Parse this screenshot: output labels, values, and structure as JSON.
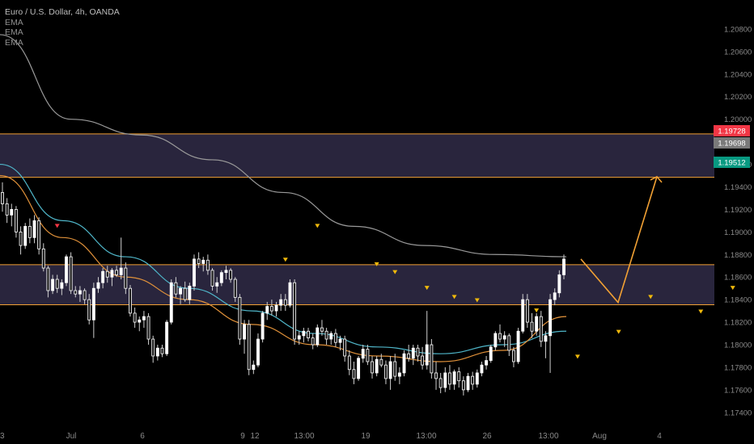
{
  "chart_data": {
    "type": "candlestick",
    "symbol_title": "Euro / U.S. Dollar, 4h, OANDA",
    "indicators": [
      "EMA",
      "EMA",
      "EMA"
    ],
    "ylim": [
      1.1732,
      1.21
    ],
    "y_ticks": [
      "1.20800",
      "1.20600",
      "1.20400",
      "1.20200",
      "1.20000",
      "1.19600",
      "1.19400",
      "1.19200",
      "1.19000",
      "1.18800",
      "1.18600",
      "1.18400",
      "1.18200",
      "1.18000",
      "1.17800",
      "1.17600",
      "1.17400"
    ],
    "x_ticks": [
      "3",
      "Jul",
      "6",
      "9",
      "12",
      "13:00",
      "19",
      "13:00",
      "26",
      "13:00",
      "Aug",
      "4"
    ],
    "price_badges": [
      {
        "label": "1.19728",
        "value": 1.19728,
        "color": "#f23645"
      },
      {
        "label": "1.19698",
        "value": 1.19698,
        "color": "#7a7a7a"
      },
      {
        "label": "1.19512",
        "value": 1.19512,
        "color": "#089981"
      }
    ],
    "zones": [
      {
        "top": 1.1987,
        "bottom": 1.19485
      },
      {
        "top": 1.1871,
        "bottom": 1.18355
      }
    ],
    "projection": [
      [
        0,
        1.1876
      ],
      [
        1,
        1.18375
      ],
      [
        2,
        1.1949
      ]
    ],
    "candles": [
      [
        1.1935,
        1.1944,
        1.1918,
        1.1925
      ],
      [
        1.1925,
        1.193,
        1.1908,
        1.1915
      ],
      [
        1.1915,
        1.1925,
        1.1905,
        1.192
      ],
      [
        1.192,
        1.1923,
        1.1895,
        1.19
      ],
      [
        1.19,
        1.1905,
        1.188,
        1.1888
      ],
      [
        1.1888,
        1.1908,
        1.1885,
        1.1905
      ],
      [
        1.1905,
        1.1912,
        1.189,
        1.1895
      ],
      [
        1.1895,
        1.1915,
        1.189,
        1.191
      ],
      [
        1.191,
        1.1913,
        1.188,
        1.1885
      ],
      [
        1.1885,
        1.189,
        1.1865,
        1.1868
      ],
      [
        1.1868,
        1.187,
        1.1842,
        1.1848
      ],
      [
        1.1848,
        1.1862,
        1.1845,
        1.1858
      ],
      [
        1.1858,
        1.1862,
        1.1846,
        1.185
      ],
      [
        1.185,
        1.1858,
        1.1844,
        1.1855
      ],
      [
        1.1855,
        1.188,
        1.1852,
        1.1878
      ],
      [
        1.1878,
        1.1882,
        1.1845,
        1.1848
      ],
      [
        1.1848,
        1.1852,
        1.1842,
        1.1845
      ],
      [
        1.1845,
        1.1852,
        1.1838,
        1.1848
      ],
      [
        1.1848,
        1.185,
        1.1836,
        1.184
      ],
      [
        1.184,
        1.1845,
        1.1818,
        1.1822
      ],
      [
        1.1822,
        1.1855,
        1.1806,
        1.185
      ],
      [
        1.185,
        1.186,
        1.1846,
        1.1855
      ],
      [
        1.1855,
        1.1868,
        1.185,
        1.1865
      ],
      [
        1.1865,
        1.187,
        1.1855,
        1.186
      ],
      [
        1.186,
        1.1868,
        1.1852,
        1.1866
      ],
      [
        1.1866,
        1.187,
        1.186,
        1.1862
      ],
      [
        1.1862,
        1.1895,
        1.1858,
        1.1868
      ],
      [
        1.1868,
        1.1873,
        1.1845,
        1.185
      ],
      [
        1.185,
        1.1853,
        1.1825,
        1.1828
      ],
      [
        1.1828,
        1.1833,
        1.1815,
        1.182
      ],
      [
        1.182,
        1.1825,
        1.1812,
        1.1822
      ],
      [
        1.1822,
        1.183,
        1.1815,
        1.1825
      ],
      [
        1.1825,
        1.1828,
        1.18,
        1.1805
      ],
      [
        1.1805,
        1.1808,
        1.1784,
        1.179
      ],
      [
        1.179,
        1.18,
        1.1786,
        1.1797
      ],
      [
        1.1797,
        1.18,
        1.1789,
        1.1792
      ],
      [
        1.1792,
        1.1822,
        1.179,
        1.182
      ],
      [
        1.182,
        1.1858,
        1.1818,
        1.1855
      ],
      [
        1.1855,
        1.186,
        1.1842,
        1.1845
      ],
      [
        1.1845,
        1.1852,
        1.1836,
        1.185
      ],
      [
        1.185,
        1.1856,
        1.1838,
        1.184
      ],
      [
        1.184,
        1.1855,
        1.1836,
        1.1852
      ],
      [
        1.1852,
        1.188,
        1.1848,
        1.1876
      ],
      [
        1.1876,
        1.1882,
        1.1868,
        1.1872
      ],
      [
        1.1872,
        1.1878,
        1.1865,
        1.1875
      ],
      [
        1.1875,
        1.188,
        1.1862,
        1.1866
      ],
      [
        1.1866,
        1.1868,
        1.1848,
        1.1852
      ],
      [
        1.1852,
        1.186,
        1.1846,
        1.1855
      ],
      [
        1.1855,
        1.1866,
        1.1852,
        1.1864
      ],
      [
        1.1864,
        1.187,
        1.1858,
        1.1866
      ],
      [
        1.1866,
        1.1868,
        1.1855,
        1.1858
      ],
      [
        1.1858,
        1.186,
        1.1838,
        1.1842
      ],
      [
        1.1842,
        1.1845,
        1.18,
        1.1805
      ],
      [
        1.1805,
        1.1822,
        1.1792,
        1.1818
      ],
      [
        1.1818,
        1.1822,
        1.1773,
        1.1778
      ],
      [
        1.1778,
        1.1786,
        1.1774,
        1.1782
      ],
      [
        1.1782,
        1.181,
        1.178,
        1.1805
      ],
      [
        1.1805,
        1.183,
        1.1802,
        1.1828
      ],
      [
        1.1828,
        1.1838,
        1.1822,
        1.1834
      ],
      [
        1.1834,
        1.184,
        1.1826,
        1.183
      ],
      [
        1.183,
        1.1838,
        1.1825,
        1.1835
      ],
      [
        1.1835,
        1.1845,
        1.183,
        1.184
      ],
      [
        1.184,
        1.1845,
        1.183,
        1.1835
      ],
      [
        1.1835,
        1.1858,
        1.1833,
        1.1855
      ],
      [
        1.1855,
        1.1858,
        1.18,
        1.1805
      ],
      [
        1.1805,
        1.1812,
        1.18,
        1.1808
      ],
      [
        1.1808,
        1.1815,
        1.1802,
        1.1812
      ],
      [
        1.1812,
        1.1815,
        1.1803,
        1.1806
      ],
      [
        1.1806,
        1.181,
        1.1796,
        1.18
      ],
      [
        1.18,
        1.1818,
        1.1798,
        1.1815
      ],
      [
        1.1815,
        1.1822,
        1.1808,
        1.1812
      ],
      [
        1.1812,
        1.1815,
        1.18,
        1.1805
      ],
      [
        1.1805,
        1.1812,
        1.18,
        1.181
      ],
      [
        1.181,
        1.1814,
        1.1798,
        1.1802
      ],
      [
        1.1802,
        1.1808,
        1.1795,
        1.1805
      ],
      [
        1.1805,
        1.1808,
        1.1785,
        1.179
      ],
      [
        1.179,
        1.1795,
        1.1773,
        1.1778
      ],
      [
        1.1778,
        1.1785,
        1.1765,
        1.177
      ],
      [
        1.177,
        1.179,
        1.1768,
        1.1788
      ],
      [
        1.1788,
        1.18,
        1.1784,
        1.1796
      ],
      [
        1.1796,
        1.18,
        1.1782,
        1.1785
      ],
      [
        1.1785,
        1.179,
        1.177,
        1.1775
      ],
      [
        1.1775,
        1.179,
        1.1772,
        1.1787
      ],
      [
        1.1787,
        1.1792,
        1.178,
        1.1782
      ],
      [
        1.1782,
        1.1786,
        1.1765,
        1.177
      ],
      [
        1.177,
        1.179,
        1.176,
        1.1785
      ],
      [
        1.1785,
        1.1792,
        1.1768,
        1.1772
      ],
      [
        1.1772,
        1.178,
        1.1765,
        1.1775
      ],
      [
        1.1775,
        1.1795,
        1.1772,
        1.1792
      ],
      [
        1.1792,
        1.18,
        1.1785,
        1.1788
      ],
      [
        1.1788,
        1.18,
        1.1782,
        1.1797
      ],
      [
        1.1797,
        1.18,
        1.1785,
        1.179
      ],
      [
        1.179,
        1.1798,
        1.1778,
        1.1782
      ],
      [
        1.1782,
        1.183,
        1.1778,
        1.18
      ],
      [
        1.18,
        1.1805,
        1.177,
        1.1775
      ],
      [
        1.1775,
        1.1785,
        1.176,
        1.177
      ],
      [
        1.177,
        1.1775,
        1.1757,
        1.1762
      ],
      [
        1.1762,
        1.178,
        1.1758,
        1.1775
      ],
      [
        1.1775,
        1.1782,
        1.176,
        1.1765
      ],
      [
        1.1765,
        1.1778,
        1.176,
        1.1776
      ],
      [
        1.1776,
        1.178,
        1.1762,
        1.1768
      ],
      [
        1.1768,
        1.1772,
        1.1755,
        1.176
      ],
      [
        1.176,
        1.1775,
        1.1758,
        1.1772
      ],
      [
        1.1772,
        1.1776,
        1.176,
        1.1765
      ],
      [
        1.1765,
        1.1778,
        1.1762,
        1.1775
      ],
      [
        1.1775,
        1.1785,
        1.1772,
        1.1782
      ],
      [
        1.1782,
        1.179,
        1.1778,
        1.1786
      ],
      [
        1.1786,
        1.18,
        1.1784,
        1.1798
      ],
      [
        1.1798,
        1.1812,
        1.1795,
        1.181
      ],
      [
        1.181,
        1.1818,
        1.1802,
        1.1805
      ],
      [
        1.1805,
        1.1812,
        1.1798,
        1.1808
      ],
      [
        1.1808,
        1.181,
        1.179,
        1.1795
      ],
      [
        1.1795,
        1.1798,
        1.178,
        1.1785
      ],
      [
        1.1785,
        1.1815,
        1.1783,
        1.1812
      ],
      [
        1.1812,
        1.1845,
        1.181,
        1.184
      ],
      [
        1.184,
        1.1845,
        1.1815,
        1.182
      ],
      [
        1.182,
        1.1828,
        1.1806,
        1.1812
      ],
      [
        1.1812,
        1.1828,
        1.1808,
        1.1825
      ],
      [
        1.1825,
        1.183,
        1.1798,
        1.1803
      ],
      [
        1.1803,
        1.1812,
        1.1788,
        1.1808
      ],
      [
        1.1808,
        1.1845,
        1.1775,
        1.184
      ],
      [
        1.184,
        1.185,
        1.1835,
        1.1846
      ],
      [
        1.1846,
        1.1866,
        1.1842,
        1.1862
      ],
      [
        1.1862,
        1.188,
        1.1858,
        1.1876
      ]
    ],
    "markers": [
      {
        "i": 12,
        "price": 1.1905,
        "color": "#f23645",
        "dir": "down"
      },
      {
        "i": 62,
        "price": 1.1875,
        "color": "#f0b90b",
        "dir": "down"
      },
      {
        "i": 69,
        "price": 1.1905,
        "color": "#f0b90b",
        "dir": "down"
      },
      {
        "i": 82,
        "price": 1.1871,
        "color": "#f0b90b",
        "dir": "down"
      },
      {
        "i": 86,
        "price": 1.1864,
        "color": "#f0b90b",
        "dir": "down"
      },
      {
        "i": 93,
        "price": 1.185,
        "color": "#f0b90b",
        "dir": "down"
      },
      {
        "i": 99,
        "price": 1.1842,
        "color": "#f0b90b",
        "dir": "down"
      },
      {
        "i": 104,
        "price": 1.1839,
        "color": "#f0b90b",
        "dir": "down"
      },
      {
        "i": 117,
        "price": 1.183,
        "color": "#f0b90b",
        "dir": "down"
      },
      {
        "i": 126,
        "price": 1.1789,
        "color": "#f0b90b",
        "dir": "down"
      },
      {
        "i": 135,
        "price": 1.1811,
        "color": "#f0b90b",
        "dir": "down"
      },
      {
        "i": 142,
        "price": 1.1842,
        "color": "#f0b90b",
        "dir": "down"
      },
      {
        "i": 153,
        "price": 1.1829,
        "color": "#f0b90b",
        "dir": "down"
      },
      {
        "i": 160,
        "price": 1.185,
        "color": "#f0b90b",
        "dir": "down"
      },
      {
        "i": 168,
        "price": 1.1818,
        "color": "#f0b90b",
        "dir": "down"
      }
    ],
    "ema_slow": [
      1.2075,
      1.2,
      1.1986,
      1.1964,
      1.1935,
      1.1905,
      1.1888,
      1.188,
      1.1878
    ],
    "ema_mid": [
      1.196,
      1.191,
      1.1878,
      1.185,
      1.183,
      1.181,
      1.1798,
      1.1792,
      1.18,
      1.1812
    ],
    "ema_fast": [
      1.195,
      1.1895,
      1.186,
      1.184,
      1.1818,
      1.18,
      1.179,
      1.1785,
      1.1795,
      1.1825
    ]
  }
}
